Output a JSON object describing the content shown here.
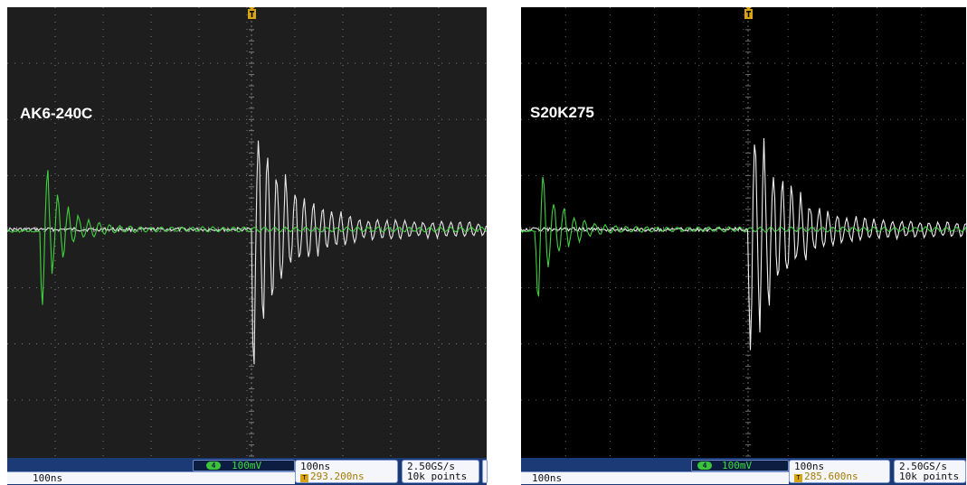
{
  "panels": [
    {
      "id": "left",
      "label": "AK6-240C",
      "channel": {
        "number": "4",
        "scale": "100mV"
      },
      "horizontal": {
        "scale": "100ns",
        "trigger_position": "293.200ns"
      },
      "acquisition": {
        "sample_rate": "2.50GS/s",
        "record_length": "10k points"
      },
      "bottom_scale": "100ns",
      "colors": {
        "screen": "#1e1e1e",
        "grid": "#7a7a7a",
        "trace_white": "#e8e8e8",
        "trace_green": "#3fcf3f"
      }
    },
    {
      "id": "right",
      "label": "S20K275",
      "channel": {
        "number": "4",
        "scale": "100mV"
      },
      "horizontal": {
        "scale": "100ns",
        "trigger_position": "285.600ns"
      },
      "acquisition": {
        "sample_rate": "2.50GS/s",
        "record_length": "10k points"
      },
      "bottom_scale": "100ns",
      "colors": {
        "screen": "#000000",
        "grid": "#6a6a6a",
        "trace_white": "#f0f0f0",
        "trace_green": "#3fcf3f"
      }
    }
  ],
  "icons": {
    "trigger": "trigger-t-icon",
    "channel": "channel-badge-icon"
  },
  "accent": {
    "statusbar": "#1b3a76",
    "trigger": "#d9a414",
    "channel_green": "#3cdc3c"
  }
}
